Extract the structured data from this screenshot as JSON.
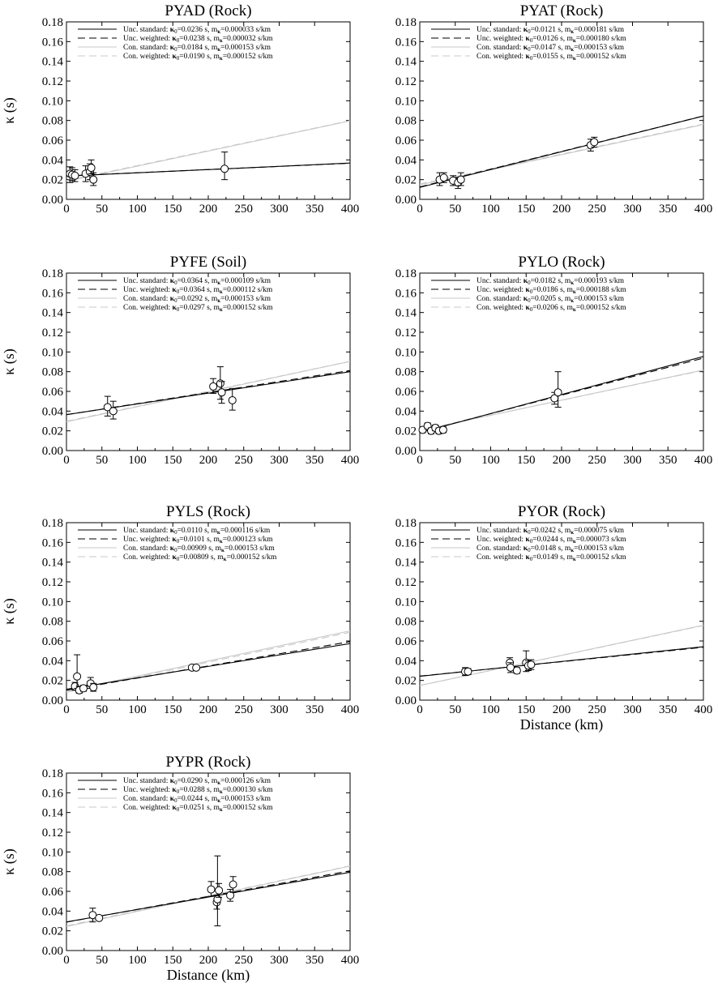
{
  "chart_data": [
    {
      "type": "scatter",
      "title": "PYAD (Rock)",
      "xlabel": "",
      "ylabel": "κ (s)",
      "xlim": [
        0,
        400
      ],
      "ylim": [
        0,
        0.18
      ],
      "xticks": [
        "0",
        "50",
        "100",
        "150",
        "200",
        "250",
        "300",
        "350",
        "400"
      ],
      "yticks": [
        "0.00",
        "0.02",
        "0.04",
        "0.06",
        "0.08",
        "0.10",
        "0.12",
        "0.14",
        "0.16",
        "0.18"
      ],
      "grid": false,
      "legend_position": "top-left",
      "points": [
        {
          "x": 5,
          "y": 0.026,
          "low": 0.017,
          "high": 0.033
        },
        {
          "x": 8,
          "y": 0.025,
          "low": 0.019,
          "high": 0.032
        },
        {
          "x": 12,
          "y": 0.024,
          "low": 0.018,
          "high": 0.03
        },
        {
          "x": 27,
          "y": 0.026,
          "low": 0.018,
          "high": 0.034
        },
        {
          "x": 33,
          "y": 0.028,
          "low": 0.02,
          "high": 0.036
        },
        {
          "x": 35,
          "y": 0.032,
          "low": 0.026,
          "high": 0.04
        },
        {
          "x": 38,
          "y": 0.02,
          "low": 0.014,
          "high": 0.027
        },
        {
          "x": 223,
          "y": 0.031,
          "low": 0.02,
          "high": 0.048
        }
      ],
      "series": [
        {
          "name": "Unc. standard",
          "kappa0_label": "0.0236 s",
          "m_label": "0.000033 s/km",
          "kappa0": 0.0236,
          "m": 3.3e-05,
          "line_style": "solid",
          "color": "#000000"
        },
        {
          "name": "Unc. weighted",
          "kappa0_label": "0.0238 s",
          "m_label": "0.000032 s/km",
          "kappa0": 0.0238,
          "m": 3.2e-05,
          "line_style": "dashed",
          "color": "#000000"
        },
        {
          "name": "Con. standard",
          "kappa0_label": "0.0184 s",
          "m_label": "0.000153 s/km",
          "kappa0": 0.0184,
          "m": 0.000153,
          "line_style": "solid",
          "color": "#c8c8c8"
        },
        {
          "name": "Con. weighted",
          "kappa0_label": "0.0190 s",
          "m_label": "0.000152 s/km",
          "kappa0": 0.019,
          "m": 0.000152,
          "line_style": "dashed",
          "color": "#c8c8c8"
        }
      ]
    },
    {
      "type": "scatter",
      "title": "PYAT  (Rock)",
      "xlabel": "",
      "ylabel": "",
      "xlim": [
        0,
        400
      ],
      "ylim": [
        0,
        0.18
      ],
      "xticks": [
        "0",
        "50",
        "100",
        "150",
        "200",
        "250",
        "300",
        "350",
        "400"
      ],
      "yticks": [
        "0.00",
        "0.02",
        "0.04",
        "0.06",
        "0.08",
        "0.10",
        "0.12",
        "0.14",
        "0.16",
        "0.18"
      ],
      "grid": false,
      "legend_position": "top-left",
      "points": [
        {
          "x": 28,
          "y": 0.02,
          "low": 0.014,
          "high": 0.027
        },
        {
          "x": 34,
          "y": 0.022,
          "low": 0.017,
          "high": 0.027
        },
        {
          "x": 47,
          "y": 0.019,
          "low": 0.014,
          "high": 0.024
        },
        {
          "x": 54,
          "y": 0.017,
          "low": 0.011,
          "high": 0.022
        },
        {
          "x": 58,
          "y": 0.02,
          "low": 0.014,
          "high": 0.027
        },
        {
          "x": 241,
          "y": 0.055,
          "low": 0.049,
          "high": 0.061
        },
        {
          "x": 246,
          "y": 0.058,
          "low": 0.053,
          "high": 0.063
        }
      ],
      "series": [
        {
          "name": "Unc. standard",
          "kappa0_label": "0.0121 s",
          "m_label": "0.000181 s/km",
          "kappa0": 0.0121,
          "m": 0.000181,
          "line_style": "solid",
          "color": "#000000"
        },
        {
          "name": "Unc. weighted",
          "kappa0_label": "0.0126 s",
          "m_label": "0.000180 s/km",
          "kappa0": 0.0126,
          "m": 0.00018,
          "line_style": "dashed",
          "color": "#000000"
        },
        {
          "name": "Con. standard",
          "kappa0_label": "0.0147 s",
          "m_label": "0.000153 s/km",
          "kappa0": 0.0147,
          "m": 0.000153,
          "line_style": "solid",
          "color": "#c8c8c8"
        },
        {
          "name": "Con. weighted",
          "kappa0_label": "0.0155 s",
          "m_label": "0.000152 s/km",
          "kappa0": 0.0155,
          "m": 0.000152,
          "line_style": "dashed",
          "color": "#c8c8c8"
        }
      ]
    },
    {
      "type": "scatter",
      "title": "PYFE (Soil)",
      "xlabel": "",
      "ylabel": "κ (s)",
      "xlim": [
        0,
        400
      ],
      "ylim": [
        0,
        0.18
      ],
      "xticks": [
        "0",
        "50",
        "100",
        "150",
        "200",
        "250",
        "300",
        "350",
        "400"
      ],
      "yticks": [
        "0.00",
        "0.02",
        "0.04",
        "0.06",
        "0.08",
        "0.10",
        "0.12",
        "0.14",
        "0.16",
        "0.18"
      ],
      "grid": false,
      "legend_position": "top-left",
      "points": [
        {
          "x": 58,
          "y": 0.044,
          "low": 0.035,
          "high": 0.055
        },
        {
          "x": 66,
          "y": 0.04,
          "low": 0.032,
          "high": 0.05
        },
        {
          "x": 207,
          "y": 0.065,
          "low": 0.058,
          "high": 0.073
        },
        {
          "x": 217,
          "y": 0.068,
          "low": 0.052,
          "high": 0.085
        },
        {
          "x": 219,
          "y": 0.059,
          "low": 0.048,
          "high": 0.07
        },
        {
          "x": 234,
          "y": 0.051,
          "low": 0.041,
          "high": 0.063
        }
      ],
      "series": [
        {
          "name": "Unc. standard",
          "kappa0_label": "0.0364 s",
          "m_label": "0.000109 s/km",
          "kappa0": 0.0364,
          "m": 0.000109,
          "line_style": "solid",
          "color": "#000000"
        },
        {
          "name": "Unc. weighted",
          "kappa0_label": "0.0364 s",
          "m_label": "0.000112 s/km",
          "kappa0": 0.0364,
          "m": 0.000112,
          "line_style": "dashed",
          "color": "#000000"
        },
        {
          "name": "Con. standard",
          "kappa0_label": "0.0292 s",
          "m_label": "0.000153 s/km",
          "kappa0": 0.0292,
          "m": 0.000153,
          "line_style": "solid",
          "color": "#c8c8c8"
        },
        {
          "name": "Con. weighted",
          "kappa0_label": "0.0297 s",
          "m_label": "0.000152 s/km",
          "kappa0": 0.0297,
          "m": 0.000152,
          "line_style": "dashed",
          "color": "#c8c8c8"
        }
      ]
    },
    {
      "type": "scatter",
      "title": "PYLO (Rock)",
      "xlabel": "",
      "ylabel": "",
      "xlim": [
        0,
        400
      ],
      "ylim": [
        0,
        0.18
      ],
      "xticks": [
        "0",
        "50",
        "100",
        "150",
        "200",
        "250",
        "300",
        "350",
        "400"
      ],
      "yticks": [
        "0.00",
        "0.02",
        "0.04",
        "0.06",
        "0.08",
        "0.10",
        "0.12",
        "0.14",
        "0.16",
        "0.18"
      ],
      "grid": false,
      "legend_position": "top-left",
      "points": [
        {
          "x": 4,
          "y": 0.021,
          "low": 0.018,
          "high": 0.024
        },
        {
          "x": 11,
          "y": 0.025,
          "low": 0.022,
          "high": 0.028
        },
        {
          "x": 16,
          "y": 0.02,
          "low": 0.017,
          "high": 0.023
        },
        {
          "x": 22,
          "y": 0.023,
          "low": 0.02,
          "high": 0.026
        },
        {
          "x": 27,
          "y": 0.02,
          "low": 0.017,
          "high": 0.023
        },
        {
          "x": 33,
          "y": 0.021,
          "low": 0.018,
          "high": 0.024
        },
        {
          "x": 190,
          "y": 0.053,
          "low": 0.047,
          "high": 0.059
        },
        {
          "x": 195,
          "y": 0.059,
          "low": 0.044,
          "high": 0.08
        }
      ],
      "series": [
        {
          "name": "Unc. standard",
          "kappa0_label": "0.0182 s",
          "m_label": "0.000193 s/km",
          "kappa0": 0.0182,
          "m": 0.000193,
          "line_style": "solid",
          "color": "#000000"
        },
        {
          "name": "Unc. weighted",
          "kappa0_label": "0.0186 s",
          "m_label": "0.000188 s/km",
          "kappa0": 0.0186,
          "m": 0.000188,
          "line_style": "dashed",
          "color": "#000000"
        },
        {
          "name": "Con. standard",
          "kappa0_label": "0.0205 s",
          "m_label": "0.000153 s/km",
          "kappa0": 0.0205,
          "m": 0.000153,
          "line_style": "solid",
          "color": "#c8c8c8"
        },
        {
          "name": "Con. weighted",
          "kappa0_label": "0.0206 s",
          "m_label": "0.000152 s/km",
          "kappa0": 0.0206,
          "m": 0.000152,
          "line_style": "dashed",
          "color": "#c8c8c8"
        }
      ]
    },
    {
      "type": "scatter",
      "title": "PYLS (Rock)",
      "xlabel": "",
      "ylabel": "κ (s)",
      "xlim": [
        0,
        400
      ],
      "ylim": [
        0,
        0.18
      ],
      "xticks": [
        "0",
        "50",
        "100",
        "150",
        "200",
        "250",
        "300",
        "350",
        "400"
      ],
      "yticks": [
        "0.00",
        "0.02",
        "0.04",
        "0.06",
        "0.08",
        "0.10",
        "0.12",
        "0.14",
        "0.16",
        "0.18"
      ],
      "grid": false,
      "legend_position": "top-left",
      "points": [
        {
          "x": 12,
          "y": 0.014,
          "low": 0.01,
          "high": 0.018
        },
        {
          "x": 15,
          "y": 0.024,
          "low": 0.012,
          "high": 0.046
        },
        {
          "x": 18,
          "y": 0.01,
          "low": 0.007,
          "high": 0.014
        },
        {
          "x": 24,
          "y": 0.012,
          "low": 0.009,
          "high": 0.015
        },
        {
          "x": 34,
          "y": 0.017,
          "low": 0.012,
          "high": 0.023
        },
        {
          "x": 38,
          "y": 0.013,
          "low": 0.009,
          "high": 0.017
        },
        {
          "x": 177,
          "y": 0.033,
          "low": 0.031,
          "high": 0.035
        },
        {
          "x": 183,
          "y": 0.033,
          "low": 0.031,
          "high": 0.035
        }
      ],
      "series": [
        {
          "name": "Unc. standard",
          "kappa0_label": "0.0110 s",
          "m_label": "0.000116 s/km",
          "kappa0": 0.011,
          "m": 0.000116,
          "line_style": "solid",
          "color": "#000000"
        },
        {
          "name": "Unc. weighted",
          "kappa0_label": "0.0101 s",
          "m_label": "0.000123 s/km",
          "kappa0": 0.0101,
          "m": 0.000123,
          "line_style": "dashed",
          "color": "#000000"
        },
        {
          "name": "Con. standard",
          "kappa0_label": "0.00909 s",
          "m_label": "0.000153 s/km",
          "kappa0": 0.00909,
          "m": 0.000153,
          "line_style": "solid",
          "color": "#c8c8c8"
        },
        {
          "name": "Con. weighted",
          "kappa0_label": "0.00809 s",
          "m_label": "0.000152 s/km",
          "kappa0": 0.00809,
          "m": 0.000152,
          "line_style": "dashed",
          "color": "#c8c8c8"
        }
      ]
    },
    {
      "type": "scatter",
      "title": "PYOR (Rock)",
      "xlabel": "Distance (km)",
      "ylabel": "",
      "xlim": [
        0,
        400
      ],
      "ylim": [
        0,
        0.18
      ],
      "xticks": [
        "0",
        "50",
        "100",
        "150",
        "200",
        "250",
        "300",
        "350",
        "400"
      ],
      "yticks": [
        "0.00",
        "0.02",
        "0.04",
        "0.06",
        "0.08",
        "0.10",
        "0.12",
        "0.14",
        "0.16",
        "0.18"
      ],
      "grid": false,
      "legend_position": "top-left",
      "points": [
        {
          "x": 64,
          "y": 0.029,
          "low": 0.025,
          "high": 0.033
        },
        {
          "x": 68,
          "y": 0.029,
          "low": 0.026,
          "high": 0.032
        },
        {
          "x": 127,
          "y": 0.038,
          "low": 0.033,
          "high": 0.043
        },
        {
          "x": 128,
          "y": 0.033,
          "low": 0.028,
          "high": 0.038
        },
        {
          "x": 137,
          "y": 0.03,
          "low": 0.027,
          "high": 0.033
        },
        {
          "x": 150,
          "y": 0.038,
          "low": 0.029,
          "high": 0.05
        },
        {
          "x": 153,
          "y": 0.035,
          "low": 0.03,
          "high": 0.04
        },
        {
          "x": 157,
          "y": 0.036,
          "low": 0.031,
          "high": 0.041
        }
      ],
      "series": [
        {
          "name": "Unc. standard",
          "kappa0_label": "0.0242 s",
          "m_label": "0.000075 s/km",
          "kappa0": 0.0242,
          "m": 7.5e-05,
          "line_style": "solid",
          "color": "#000000"
        },
        {
          "name": "Unc. weighted",
          "kappa0_label": "0.0244 s",
          "m_label": "0.000073 s/km",
          "kappa0": 0.0244,
          "m": 7.3e-05,
          "line_style": "dashed",
          "color": "#000000"
        },
        {
          "name": "Con. standard",
          "kappa0_label": "0.0148 s",
          "m_label": "0.000153 s/km",
          "kappa0": 0.0148,
          "m": 0.000153,
          "line_style": "solid",
          "color": "#c8c8c8"
        },
        {
          "name": "Con. weighted",
          "kappa0_label": "0.0149 s",
          "m_label": "0.000152 s/km",
          "kappa0": 0.0149,
          "m": 0.000152,
          "line_style": "dashed",
          "color": "#c8c8c8"
        }
      ]
    },
    {
      "type": "scatter",
      "title": "PYPR (Rock)",
      "xlabel": "Distance (km)",
      "ylabel": "κ (s)",
      "xlim": [
        0,
        400
      ],
      "ylim": [
        0,
        0.18
      ],
      "xticks": [
        "0",
        "50",
        "100",
        "150",
        "200",
        "250",
        "300",
        "350",
        "400"
      ],
      "yticks": [
        "0.00",
        "0.02",
        "0.04",
        "0.06",
        "0.08",
        "0.10",
        "0.12",
        "0.14",
        "0.16",
        "0.18"
      ],
      "grid": false,
      "legend_position": "top-left",
      "points": [
        {
          "x": 37,
          "y": 0.036,
          "low": 0.029,
          "high": 0.043
        },
        {
          "x": 46,
          "y": 0.033,
          "low": 0.031,
          "high": 0.035
        },
        {
          "x": 204,
          "y": 0.062,
          "low": 0.055,
          "high": 0.07
        },
        {
          "x": 212,
          "y": 0.049,
          "low": 0.042,
          "high": 0.056
        },
        {
          "x": 213,
          "y": 0.052,
          "low": 0.025,
          "high": 0.096
        },
        {
          "x": 215,
          "y": 0.061,
          "low": 0.054,
          "high": 0.068
        },
        {
          "x": 231,
          "y": 0.056,
          "low": 0.05,
          "high": 0.062
        },
        {
          "x": 235,
          "y": 0.067,
          "low": 0.059,
          "high": 0.075
        }
      ],
      "series": [
        {
          "name": "Unc. standard",
          "kappa0_label": "0.0290 s",
          "m_label": "0.000126 s/km",
          "kappa0": 0.029,
          "m": 0.000126,
          "line_style": "solid",
          "color": "#000000"
        },
        {
          "name": "Unc. weighted",
          "kappa0_label": "0.0288 s",
          "m_label": "0.000130 s/km",
          "kappa0": 0.0288,
          "m": 0.00013,
          "line_style": "dashed",
          "color": "#000000"
        },
        {
          "name": "Con. standard",
          "kappa0_label": "0.0244 s",
          "m_label": "0.000153 s/km",
          "kappa0": 0.0244,
          "m": 0.000153,
          "line_style": "solid",
          "color": "#c8c8c8"
        },
        {
          "name": "Con. weighted",
          "kappa0_label": "0.0251 s",
          "m_label": "0.000152 s/km",
          "kappa0": 0.0251,
          "m": 0.000152,
          "line_style": "dashed",
          "color": "#c8c8c8"
        }
      ]
    }
  ]
}
